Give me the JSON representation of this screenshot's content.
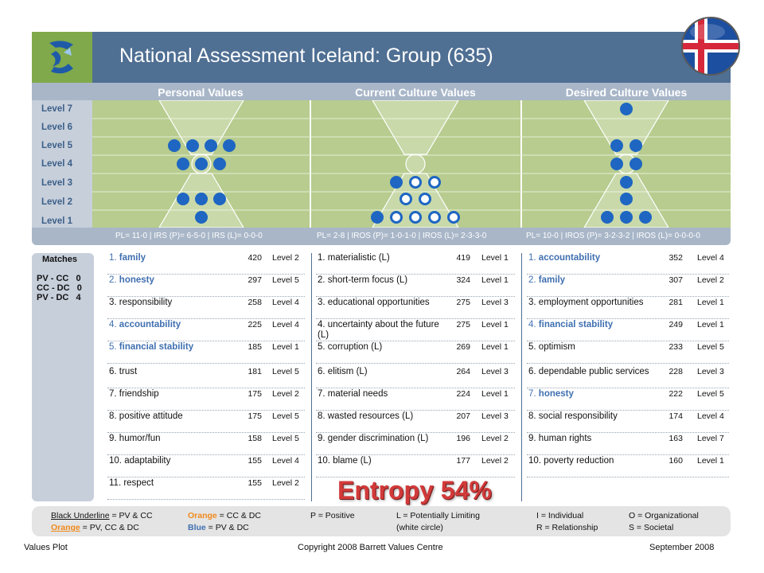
{
  "title": "National Assessment Iceland: Group (635)",
  "columns": [
    "Personal Values",
    "Current Culture Values",
    "Desired Culture Values"
  ],
  "levels": [
    "Level 7",
    "Level 6",
    "Level 5",
    "Level 4",
    "Level 3",
    "Level 2",
    "Level 1"
  ],
  "plot": {
    "personal": {
      "l7": [],
      "l6": [],
      "l5": [
        "filled",
        "filled",
        "filled",
        "filled"
      ],
      "l4": [
        "filled",
        "filled",
        "filled"
      ],
      "l3": [],
      "l2": [
        "filled",
        "filled",
        "filled"
      ],
      "l1": [
        "filled"
      ]
    },
    "current": {
      "l7": [],
      "l6": [],
      "l5": [],
      "l4": [],
      "l3": [
        "filled",
        "open",
        "open"
      ],
      "l2": [
        "open",
        "open"
      ],
      "l1": [
        "filled",
        "open",
        "open",
        "open",
        "open"
      ]
    },
    "desired": {
      "l7": [
        "filled"
      ],
      "l6": [],
      "l5": [
        "filled",
        "filled"
      ],
      "l4": [
        "filled",
        "filled"
      ],
      "l3": [
        "filled"
      ],
      "l2": [
        "filled"
      ],
      "l1": [
        "filled",
        "filled",
        "filled"
      ]
    }
  },
  "footers": [
    "PL= 11-0 | IRS (P)= 6-5-0 | IRS (L)= 0-0-0",
    "PL= 2-8 | IROS (P)= 1-0-1-0 | IROS (L)= 2-3-3-0",
    "PL= 10-0 | IROS (P)= 3-2-3-2 | IROS (L)= 0-0-0-0"
  ],
  "matches": {
    "title": "Matches",
    "rows": [
      {
        "label": "PV - CC",
        "value": "0"
      },
      {
        "label": "CC - DC",
        "value": "0"
      },
      {
        "label": "PV - DC",
        "value": "4"
      }
    ]
  },
  "personal_values": [
    {
      "n": "1.",
      "name": "family",
      "count": "420",
      "level": "Level 2",
      "hl": "blue"
    },
    {
      "n": "2.",
      "name": "honesty",
      "count": "297",
      "level": "Level 5",
      "hl": "blue"
    },
    {
      "n": "3.",
      "name": "responsibility",
      "count": "258",
      "level": "Level 4",
      "hl": ""
    },
    {
      "n": "4.",
      "name": "accountability",
      "count": "225",
      "level": "Level 4",
      "hl": "blue"
    },
    {
      "n": "5.",
      "name": "financial stability",
      "count": "185",
      "level": "Level 1",
      "hl": "blue"
    },
    {
      "n": "6.",
      "name": "trust",
      "count": "181",
      "level": "Level 5",
      "hl": ""
    },
    {
      "n": "7.",
      "name": "friendship",
      "count": "175",
      "level": "Level 2",
      "hl": ""
    },
    {
      "n": "8.",
      "name": "positive attitude",
      "count": "175",
      "level": "Level 5",
      "hl": ""
    },
    {
      "n": "9.",
      "name": "humor/fun",
      "count": "158",
      "level": "Level 5",
      "hl": ""
    },
    {
      "n": "10.",
      "name": "adaptability",
      "count": "155",
      "level": "Level 4",
      "hl": ""
    },
    {
      "n": "11.",
      "name": "respect",
      "count": "155",
      "level": "Level 2",
      "hl": ""
    }
  ],
  "current_values": [
    {
      "n": "1.",
      "name": "materialistic (L)",
      "count": "419",
      "level": "Level 1",
      "hl": ""
    },
    {
      "n": "2.",
      "name": "short-term focus (L)",
      "count": "324",
      "level": "Level 1",
      "hl": ""
    },
    {
      "n": "3.",
      "name": "educational opportunities",
      "count": "275",
      "level": "Level 3",
      "hl": ""
    },
    {
      "n": "4.",
      "name": "uncertainty about the future (L)",
      "count": "275",
      "level": "Level 1",
      "hl": ""
    },
    {
      "n": "5.",
      "name": "corruption (L)",
      "count": "269",
      "level": "Level 1",
      "hl": ""
    },
    {
      "n": "6.",
      "name": "elitism (L)",
      "count": "264",
      "level": "Level 3",
      "hl": ""
    },
    {
      "n": "7.",
      "name": "material needs",
      "count": "224",
      "level": "Level 1",
      "hl": ""
    },
    {
      "n": "8.",
      "name": "wasted resources (L)",
      "count": "207",
      "level": "Level 3",
      "hl": ""
    },
    {
      "n": "9.",
      "name": "gender discrimination (L)",
      "count": "196",
      "level": "Level 2",
      "hl": ""
    },
    {
      "n": "10.",
      "name": "blame (L)",
      "count": "177",
      "level": "Level 2",
      "hl": ""
    }
  ],
  "desired_values": [
    {
      "n": "1.",
      "name": "accountability",
      "count": "352",
      "level": "Level 4",
      "hl": "blue"
    },
    {
      "n": "2.",
      "name": "family",
      "count": "307",
      "level": "Level 2",
      "hl": "blue"
    },
    {
      "n": "3.",
      "name": "employment opportunities",
      "count": "281",
      "level": "Level 1",
      "hl": ""
    },
    {
      "n": "4.",
      "name": "financial stability",
      "count": "249",
      "level": "Level 1",
      "hl": "blue"
    },
    {
      "n": "5.",
      "name": "optimism",
      "count": "233",
      "level": "Level 5",
      "hl": ""
    },
    {
      "n": "6.",
      "name": "dependable public services",
      "count": "228",
      "level": "Level 3",
      "hl": ""
    },
    {
      "n": "7.",
      "name": "honesty",
      "count": "222",
      "level": "Level 5",
      "hl": "blue"
    },
    {
      "n": "8.",
      "name": "social responsibility",
      "count": "174",
      "level": "Level 4",
      "hl": ""
    },
    {
      "n": "9.",
      "name": "human rights",
      "count": "163",
      "level": "Level 7",
      "hl": ""
    },
    {
      "n": "10.",
      "name": "poverty reduction",
      "count": "160",
      "level": "Level 1",
      "hl": ""
    }
  ],
  "entropy": "Entropy 54%",
  "legend": {
    "black_underline": "Black Underline",
    "black_underline_rest": " = PV & CC",
    "orange1": "Orange",
    "orange1_rest": " = CC & DC",
    "positive": "P = Positive",
    "limiting": "L = Potentially Limiting",
    "white_circle": "(white circle)",
    "individual": "I = Individual",
    "organizational": "O = Organizational",
    "orange2": "Orange",
    "orange2_rest": " = PV, CC & DC",
    "blue": "Blue",
    "blue_rest": " = PV & DC",
    "relationship": "R = Relationship",
    "societal": "S = Societal"
  },
  "bottom": {
    "left": "Values Plot",
    "center": "Copyright 2008 Barrett Values Centre",
    "right": "September 2008"
  },
  "colors": {
    "header": "#4f6f93",
    "plot_bg": "#b7cc8e",
    "dot": "#1e66c2",
    "highlight_blue": "#3f6fb0",
    "entropy": "#d23a3a",
    "logo_bg": "#7fa94a"
  },
  "icons": {
    "logo": "barrett-logo-icon",
    "flag": "iceland-flag-icon"
  }
}
